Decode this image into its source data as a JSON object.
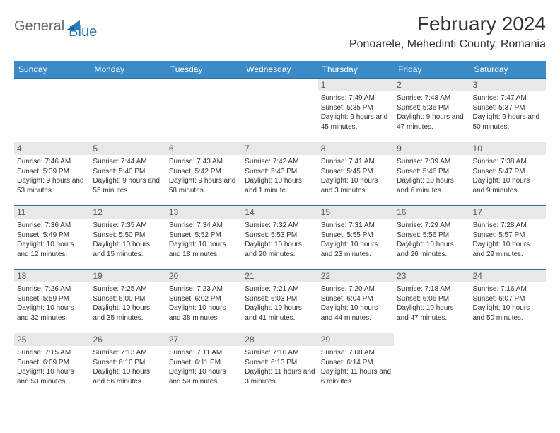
{
  "logo": {
    "text1": "General",
    "text2": "Blue"
  },
  "title": "February 2024",
  "location": "Ponoarele, Mehedinti County, Romania",
  "colors": {
    "header_bg": "#3b8bc9",
    "header_text": "#ffffff",
    "divider": "#2a6fa3",
    "daynum_bg": "#e8e8e8",
    "logo_gray": "#6a6a6a",
    "logo_blue": "#2a7ab9"
  },
  "weekdays": [
    "Sunday",
    "Monday",
    "Tuesday",
    "Wednesday",
    "Thursday",
    "Friday",
    "Saturday"
  ],
  "weeks": [
    [
      null,
      null,
      null,
      null,
      {
        "n": "1",
        "sr": "7:49 AM",
        "ss": "5:35 PM",
        "dl": "9 hours and 45 minutes."
      },
      {
        "n": "2",
        "sr": "7:48 AM",
        "ss": "5:36 PM",
        "dl": "9 hours and 47 minutes."
      },
      {
        "n": "3",
        "sr": "7:47 AM",
        "ss": "5:37 PM",
        "dl": "9 hours and 50 minutes."
      }
    ],
    [
      {
        "n": "4",
        "sr": "7:46 AM",
        "ss": "5:39 PM",
        "dl": "9 hours and 53 minutes."
      },
      {
        "n": "5",
        "sr": "7:44 AM",
        "ss": "5:40 PM",
        "dl": "9 hours and 55 minutes."
      },
      {
        "n": "6",
        "sr": "7:43 AM",
        "ss": "5:42 PM",
        "dl": "9 hours and 58 minutes."
      },
      {
        "n": "7",
        "sr": "7:42 AM",
        "ss": "5:43 PM",
        "dl": "10 hours and 1 minute."
      },
      {
        "n": "8",
        "sr": "7:41 AM",
        "ss": "5:45 PM",
        "dl": "10 hours and 3 minutes."
      },
      {
        "n": "9",
        "sr": "7:39 AM",
        "ss": "5:46 PM",
        "dl": "10 hours and 6 minutes."
      },
      {
        "n": "10",
        "sr": "7:38 AM",
        "ss": "5:47 PM",
        "dl": "10 hours and 9 minutes."
      }
    ],
    [
      {
        "n": "11",
        "sr": "7:36 AM",
        "ss": "5:49 PM",
        "dl": "10 hours and 12 minutes."
      },
      {
        "n": "12",
        "sr": "7:35 AM",
        "ss": "5:50 PM",
        "dl": "10 hours and 15 minutes."
      },
      {
        "n": "13",
        "sr": "7:34 AM",
        "ss": "5:52 PM",
        "dl": "10 hours and 18 minutes."
      },
      {
        "n": "14",
        "sr": "7:32 AM",
        "ss": "5:53 PM",
        "dl": "10 hours and 20 minutes."
      },
      {
        "n": "15",
        "sr": "7:31 AM",
        "ss": "5:55 PM",
        "dl": "10 hours and 23 minutes."
      },
      {
        "n": "16",
        "sr": "7:29 AM",
        "ss": "5:56 PM",
        "dl": "10 hours and 26 minutes."
      },
      {
        "n": "17",
        "sr": "7:28 AM",
        "ss": "5:57 PM",
        "dl": "10 hours and 29 minutes."
      }
    ],
    [
      {
        "n": "18",
        "sr": "7:26 AM",
        "ss": "5:59 PM",
        "dl": "10 hours and 32 minutes."
      },
      {
        "n": "19",
        "sr": "7:25 AM",
        "ss": "6:00 PM",
        "dl": "10 hours and 35 minutes."
      },
      {
        "n": "20",
        "sr": "7:23 AM",
        "ss": "6:02 PM",
        "dl": "10 hours and 38 minutes."
      },
      {
        "n": "21",
        "sr": "7:21 AM",
        "ss": "6:03 PM",
        "dl": "10 hours and 41 minutes."
      },
      {
        "n": "22",
        "sr": "7:20 AM",
        "ss": "6:04 PM",
        "dl": "10 hours and 44 minutes."
      },
      {
        "n": "23",
        "sr": "7:18 AM",
        "ss": "6:06 PM",
        "dl": "10 hours and 47 minutes."
      },
      {
        "n": "24",
        "sr": "7:16 AM",
        "ss": "6:07 PM",
        "dl": "10 hours and 50 minutes."
      }
    ],
    [
      {
        "n": "25",
        "sr": "7:15 AM",
        "ss": "6:09 PM",
        "dl": "10 hours and 53 minutes."
      },
      {
        "n": "26",
        "sr": "7:13 AM",
        "ss": "6:10 PM",
        "dl": "10 hours and 56 minutes."
      },
      {
        "n": "27",
        "sr": "7:11 AM",
        "ss": "6:11 PM",
        "dl": "10 hours and 59 minutes."
      },
      {
        "n": "28",
        "sr": "7:10 AM",
        "ss": "6:13 PM",
        "dl": "11 hours and 3 minutes."
      },
      {
        "n": "29",
        "sr": "7:08 AM",
        "ss": "6:14 PM",
        "dl": "11 hours and 6 minutes."
      },
      null,
      null
    ]
  ],
  "labels": {
    "sunrise": "Sunrise:",
    "sunset": "Sunset:",
    "daylight": "Daylight:"
  }
}
